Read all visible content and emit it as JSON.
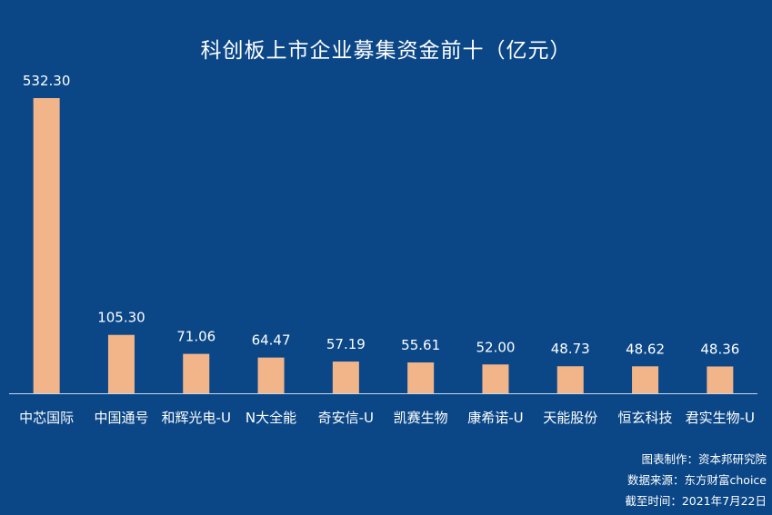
{
  "chart_data": {
    "type": "bar",
    "title": "科创板上市企业募集资金前十（亿元）",
    "categories": [
      "中芯国际",
      "中国通号",
      "和辉光电-U",
      "N大全能",
      "奇安信-U",
      "凯赛生物",
      "康希诺-U",
      "天能股份",
      "恒玄科技",
      "君实生物-U"
    ],
    "values": [
      532.3,
      105.3,
      71.06,
      64.47,
      57.19,
      55.61,
      52.0,
      48.73,
      48.62,
      48.36
    ],
    "value_labels": [
      "532.30",
      "105.30",
      "71.06",
      "64.47",
      "57.19",
      "55.61",
      "52.00",
      "48.73",
      "48.62",
      "48.36"
    ],
    "xlabel": "",
    "ylabel": "",
    "ylim": [
      0,
      532.3
    ],
    "grid": false,
    "bar_color": "#f2b58a",
    "axis_color": "#c9d6e6",
    "background": "#0b4787"
  },
  "footer": {
    "credit": "图表制作：资本邦研究院",
    "source": "数据来源：东方财富choice",
    "date": "截至时间：2021年7月22日"
  }
}
